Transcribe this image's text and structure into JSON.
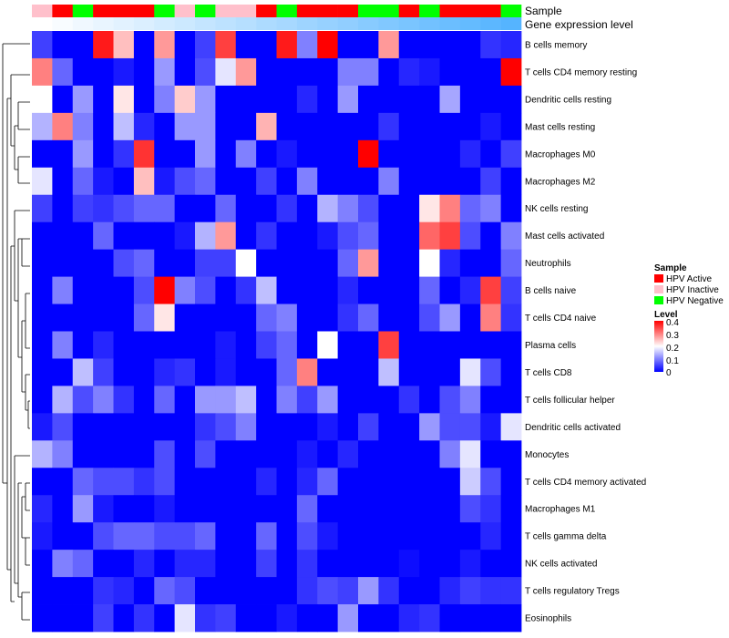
{
  "chart_data": {
    "type": "heatmap",
    "title": "",
    "annotation_labels": [
      "Sample",
      "Gene expression level"
    ],
    "rows": [
      "B cells memory",
      "T cells CD4 memory resting",
      "Dendritic cells resting",
      "Mast cells resting",
      "Macrophages M0",
      "Macrophages M2",
      "NK cells resting",
      "Mast cells activated",
      "Neutrophils",
      "B cells naive",
      "T cells CD4 naive",
      "Plasma cells",
      "T cells CD8",
      "T cells follicular helper",
      "Dendritic cells activated",
      "Monocytes",
      "T cells CD4 memory activated",
      "Macrophages M1",
      "T cells gamma delta",
      "NK cells activated",
      "T cells regulatory  Tregs",
      "Eosinophils"
    ],
    "sample_groups": [
      "HPV Inactive",
      "HPV Active",
      "HPV Negative",
      "HPV Active",
      "HPV Active",
      "HPV Active",
      "HPV Negative",
      "HPV Inactive",
      "HPV Negative",
      "HPV Inactive",
      "HPV Inactive",
      "HPV Active",
      "HPV Negative",
      "HPV Active",
      "HPV Active",
      "HPV Active",
      "HPV Negative",
      "HPV Negative",
      "HPV Active",
      "HPV Negative",
      "HPV Active",
      "HPV Active",
      "HPV Active",
      "HPV Negative"
    ],
    "gene_expression_level": [
      0.0,
      0.04,
      0.09,
      0.13,
      0.17,
      0.21,
      0.26,
      0.3,
      0.35,
      0.39,
      0.43,
      0.48,
      0.52,
      0.57,
      0.61,
      0.65,
      0.7,
      0.74,
      0.78,
      0.83,
      0.87,
      0.91,
      0.96,
      1.0
    ],
    "values": [
      [
        0.05,
        0,
        0,
        0.38,
        0.25,
        0,
        0.28,
        0,
        0.05,
        0.35,
        0,
        0,
        0.38,
        0.1,
        0.4,
        0,
        0,
        0.28,
        0,
        0,
        0,
        0,
        0.04,
        0.03
      ],
      [
        0.3,
        0.08,
        0,
        0,
        0.02,
        0,
        0.12,
        0,
        0.06,
        0.18,
        0.28,
        0,
        0,
        0,
        0,
        0.1,
        0.1,
        0,
        0.03,
        0.02,
        0,
        0,
        0,
        0.4
      ],
      [
        0.2,
        0,
        0.12,
        0,
        0.22,
        0,
        0.1,
        0.24,
        0.12,
        0,
        0,
        0,
        0,
        0.03,
        0,
        0.12,
        0,
        0,
        0,
        0,
        0.13,
        0,
        0,
        0
      ],
      [
        0.14,
        0.3,
        0.1,
        0,
        0.15,
        0.03,
        0,
        0.12,
        0.12,
        0,
        0,
        0.26,
        0,
        0,
        0,
        0,
        0,
        0.04,
        0,
        0,
        0,
        0,
        0.02,
        0
      ],
      [
        0,
        0,
        0.12,
        0,
        0.04,
        0.36,
        0,
        0,
        0.12,
        0,
        0.1,
        0,
        0.02,
        0,
        0,
        0,
        0.4,
        0,
        0,
        0,
        0,
        0.03,
        0,
        0.05
      ],
      [
        0.18,
        0,
        0.08,
        0.02,
        0,
        0.25,
        0.02,
        0.06,
        0.08,
        0,
        0,
        0.05,
        0,
        0.1,
        0,
        0,
        0,
        0.1,
        0,
        0,
        0,
        0,
        0.05,
        0
      ],
      [
        0.05,
        0,
        0.05,
        0.04,
        0.06,
        0.08,
        0.08,
        0,
        0,
        0.08,
        0,
        0,
        0.04,
        0,
        0.14,
        0.1,
        0.06,
        0,
        0,
        0.22,
        0.3,
        0.08,
        0.1,
        0
      ],
      [
        0,
        0,
        0,
        0.08,
        0,
        0,
        0,
        0.02,
        0.14,
        0.28,
        0,
        0.04,
        0,
        0,
        0.02,
        0.06,
        0.08,
        0,
        0,
        0.32,
        0.35,
        0.06,
        0,
        0.1
      ],
      [
        0,
        0,
        0,
        0,
        0.06,
        0.08,
        0,
        0,
        0.05,
        0.05,
        0.2,
        0,
        0,
        0,
        0,
        0.08,
        0.28,
        0,
        0,
        0.2,
        0.03,
        0,
        0,
        0.08
      ],
      [
        0,
        0.1,
        0,
        0,
        0,
        0.06,
        0.4,
        0.1,
        0.06,
        0,
        0.04,
        0.15,
        0,
        0,
        0,
        0.03,
        0,
        0,
        0,
        0.08,
        0,
        0.03,
        0.35,
        0.05
      ],
      [
        0,
        0,
        0,
        0,
        0,
        0.08,
        0.22,
        0,
        0,
        0,
        0,
        0.08,
        0.1,
        0,
        0,
        0.04,
        0.08,
        0,
        0,
        0.06,
        0.12,
        0,
        0.3,
        0.04
      ],
      [
        0,
        0.1,
        0,
        0.03,
        0,
        0,
        0,
        0,
        0,
        0.02,
        0,
        0.05,
        0.08,
        0,
        0.2,
        0,
        0,
        0.35,
        0,
        0,
        0,
        0,
        0,
        0
      ],
      [
        0,
        0,
        0.15,
        0.05,
        0,
        0,
        0.03,
        0.04,
        0,
        0.02,
        0,
        0,
        0.08,
        0.3,
        0,
        0,
        0,
        0.15,
        0,
        0,
        0,
        0.18,
        0.06,
        0
      ],
      [
        0,
        0.14,
        0.06,
        0.1,
        0.04,
        0,
        0.08,
        0,
        0.12,
        0.12,
        0.15,
        0,
        0.1,
        0.05,
        0.12,
        0,
        0,
        0,
        0.04,
        0,
        0.06,
        0.1,
        0,
        0
      ],
      [
        0.02,
        0.06,
        0,
        0,
        0,
        0,
        0,
        0,
        0.04,
        0.06,
        0.1,
        0,
        0,
        0,
        0.02,
        0,
        0.05,
        0,
        0,
        0.12,
        0.06,
        0.06,
        0.02,
        0.18
      ],
      [
        0.14,
        0.1,
        0,
        0,
        0,
        0,
        0.06,
        0,
        0.06,
        0,
        0,
        0,
        0,
        0.02,
        0,
        0.03,
        0,
        0,
        0,
        0,
        0.1,
        0.18,
        0,
        0
      ],
      [
        0,
        0,
        0.08,
        0.06,
        0.06,
        0.04,
        0.06,
        0,
        0,
        0,
        0,
        0.03,
        0,
        0.03,
        0.08,
        0,
        0,
        0,
        0,
        0,
        0,
        0.16,
        0.06,
        0
      ],
      [
        0.03,
        0,
        0.12,
        0.02,
        0,
        0,
        0.02,
        0,
        0,
        0,
        0,
        0,
        0,
        0.08,
        0,
        0,
        0,
        0,
        0,
        0,
        0,
        0.06,
        0.04,
        0
      ],
      [
        0.02,
        0,
        0,
        0.06,
        0.08,
        0.08,
        0.06,
        0.06,
        0.08,
        0,
        0,
        0.08,
        0,
        0.06,
        0.02,
        0,
        0,
        0,
        0,
        0,
        0,
        0,
        0.03,
        0
      ],
      [
        0,
        0.1,
        0.08,
        0,
        0,
        0.03,
        0,
        0.03,
        0.03,
        0,
        0,
        0.05,
        0,
        0.04,
        0,
        0,
        0,
        0,
        0.01,
        0,
        0,
        0.02,
        0,
        0
      ],
      [
        0,
        0,
        0,
        0.04,
        0.03,
        0,
        0.08,
        0.06,
        0,
        0,
        0,
        0,
        0,
        0.04,
        0.06,
        0.05,
        0.12,
        0.04,
        0,
        0,
        0.03,
        0.05,
        0.04,
        0.04
      ],
      [
        0,
        0,
        0,
        0.05,
        0,
        0.04,
        0,
        0.18,
        0.04,
        0.05,
        0,
        0,
        0.02,
        0,
        0,
        0.12,
        0,
        0,
        0.03,
        0.04,
        0,
        0,
        0,
        0
      ]
    ],
    "legend_sample": {
      "title": "Sample",
      "entries": [
        {
          "label": "HPV Active",
          "color": "#ff0000"
        },
        {
          "label": "HPV Inactive",
          "color": "#ffc0cb"
        },
        {
          "label": "HPV Negative",
          "color": "#00ff00"
        }
      ]
    },
    "legend_level": {
      "title": "Level",
      "ticks": [
        "0.4",
        "0.3",
        "0.2",
        "0.1",
        "0"
      ],
      "tick_values": [
        0.4,
        0.3,
        0.2,
        0.1,
        0
      ],
      "range": [
        0,
        0.4
      ]
    },
    "colors": {
      "low": "#0000ff",
      "mid": "#ffffff",
      "high": "#ff0000",
      "annotation_low": "#ffffff",
      "annotation_high": "#55b4ff"
    }
  }
}
